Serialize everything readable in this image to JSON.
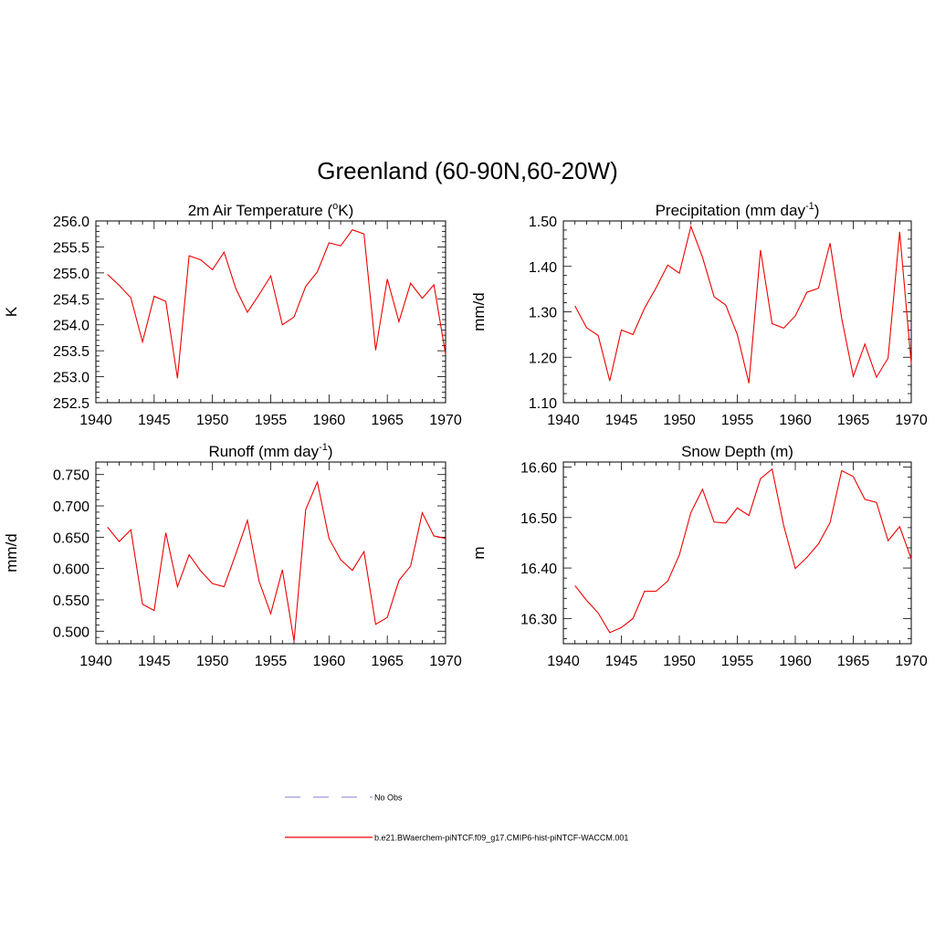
{
  "figure": {
    "title": "Greenland (60-90N,60-20W)"
  },
  "legend": {
    "entries": [
      {
        "label": "No Obs",
        "color": "#9999dd",
        "style": "dashed"
      },
      {
        "label": "b.e21.BWaerchem-piNTCF.f09_g17.CMIP6-hist-piNTCF-WACCM.001",
        "color": "#ee0000",
        "style": "solid"
      }
    ]
  },
  "chart_data": [
    {
      "type": "line",
      "title": "2m Air Temperature (",
      "title_sup": "o",
      "title_after": "K)",
      "ylabel": "K",
      "xlim": [
        1940,
        1970
      ],
      "ylim": [
        252.5,
        256.0
      ],
      "xticks": [
        1940,
        1945,
        1950,
        1955,
        1960,
        1965,
        1970
      ],
      "xtick_labels": [
        "1940",
        "1945",
        "1950",
        "1955",
        "1960",
        "1965",
        "1970"
      ],
      "yticks": [
        252.5,
        253.0,
        253.5,
        254.0,
        254.5,
        255.0,
        255.5,
        256.0
      ],
      "ytick_labels": [
        "252.5",
        "253.0",
        "253.5",
        "254.0",
        "254.5",
        "255.0",
        "255.5",
        "256.0"
      ],
      "x": [
        1941,
        1942,
        1943,
        1944,
        1945,
        1946,
        1947,
        1948,
        1949,
        1950,
        1951,
        1952,
        1953,
        1954,
        1955,
        1956,
        1957,
        1958,
        1959,
        1960,
        1961,
        1962,
        1963,
        1964,
        1965,
        1966,
        1967,
        1968,
        1969,
        1970
      ],
      "series": [
        {
          "color": "#ee0000",
          "values": [
            254.97,
            254.76,
            254.52,
            253.67,
            254.55,
            254.45,
            252.97,
            255.33,
            255.25,
            255.06,
            255.4,
            254.7,
            254.24,
            254.58,
            254.94,
            254.0,
            254.15,
            254.74,
            255.02,
            255.58,
            255.52,
            255.83,
            255.75,
            253.51,
            254.88,
            254.06,
            254.8,
            254.51,
            254.77,
            253.43
          ]
        }
      ]
    },
    {
      "type": "line",
      "title": "Precipitation (mm day",
      "title_sup": "-1",
      "title_after": ")",
      "ylabel": "mm/d",
      "xlim": [
        1940,
        1970
      ],
      "ylim": [
        1.1,
        1.5
      ],
      "xticks": [
        1940,
        1945,
        1950,
        1955,
        1960,
        1965,
        1970
      ],
      "xtick_labels": [
        "1940",
        "1945",
        "1950",
        "1955",
        "1960",
        "1965",
        "1970"
      ],
      "yticks": [
        1.1,
        1.2,
        1.3,
        1.4,
        1.5
      ],
      "ytick_labels": [
        "1.10",
        "1.20",
        "1.30",
        "1.40",
        "1.50"
      ],
      "x": [
        1941,
        1942,
        1943,
        1944,
        1945,
        1946,
        1947,
        1948,
        1949,
        1950,
        1951,
        1952,
        1953,
        1954,
        1955,
        1956,
        1957,
        1958,
        1959,
        1960,
        1961,
        1962,
        1963,
        1964,
        1965,
        1966,
        1967,
        1968,
        1969,
        1970
      ],
      "series": [
        {
          "color": "#ee0000",
          "values": [
            1.313,
            1.265,
            1.248,
            1.148,
            1.26,
            1.25,
            1.308,
            1.353,
            1.403,
            1.385,
            1.488,
            1.42,
            1.333,
            1.315,
            1.25,
            1.143,
            1.436,
            1.274,
            1.264,
            1.291,
            1.343,
            1.352,
            1.451,
            1.286,
            1.158,
            1.229,
            1.156,
            1.198,
            1.476,
            1.186
          ]
        }
      ]
    },
    {
      "type": "line",
      "title": "Runoff (mm day",
      "title_sup": "-1",
      "title_after": ")",
      "ylabel": "mm/d",
      "xlim": [
        1940,
        1970
      ],
      "ylim": [
        0.48,
        0.77
      ],
      "xticks": [
        1940,
        1945,
        1950,
        1955,
        1960,
        1965,
        1970
      ],
      "xtick_labels": [
        "1940",
        "1945",
        "1950",
        "1955",
        "1960",
        "1965",
        "1970"
      ],
      "yticks": [
        0.5,
        0.55,
        0.6,
        0.65,
        0.7,
        0.75
      ],
      "ytick_labels": [
        "0.500",
        "0.550",
        "0.600",
        "0.650",
        "0.700",
        "0.750"
      ],
      "x": [
        1941,
        1942,
        1943,
        1944,
        1945,
        1946,
        1947,
        1948,
        1949,
        1950,
        1951,
        1952,
        1953,
        1954,
        1955,
        1956,
        1957,
        1958,
        1959,
        1960,
        1961,
        1962,
        1963,
        1964,
        1965,
        1966,
        1967,
        1968,
        1969,
        1970
      ],
      "series": [
        {
          "color": "#ee0000",
          "values": [
            0.666,
            0.643,
            0.662,
            0.543,
            0.533,
            0.657,
            0.571,
            0.622,
            0.596,
            0.576,
            0.571,
            0.623,
            0.677,
            0.58,
            0.528,
            0.598,
            0.484,
            0.694,
            0.738,
            0.648,
            0.614,
            0.597,
            0.627,
            0.511,
            0.522,
            0.581,
            0.604,
            0.689,
            0.652,
            0.648
          ]
        }
      ]
    },
    {
      "type": "line",
      "title": "Snow Depth (m)",
      "title_sup": "",
      "title_after": "",
      "ylabel": "m",
      "xlim": [
        1940,
        1970
      ],
      "ylim": [
        16.25,
        16.61
      ],
      "xticks": [
        1940,
        1945,
        1950,
        1955,
        1960,
        1965,
        1970
      ],
      "xtick_labels": [
        "1940",
        "1945",
        "1950",
        "1955",
        "1960",
        "1965",
        "1970"
      ],
      "yticks": [
        16.3,
        16.4,
        16.5,
        16.6
      ],
      "ytick_labels": [
        "16.30",
        "16.40",
        "16.50",
        "16.60"
      ],
      "x": [
        1941,
        1942,
        1943,
        1944,
        1945,
        1946,
        1947,
        1948,
        1949,
        1950,
        1951,
        1952,
        1953,
        1954,
        1955,
        1956,
        1957,
        1958,
        1959,
        1960,
        1961,
        1962,
        1963,
        1964,
        1965,
        1966,
        1967,
        1968,
        1969,
        1970
      ],
      "series": [
        {
          "color": "#ee0000",
          "values": [
            16.365,
            16.336,
            16.311,
            16.272,
            16.282,
            16.3,
            16.354,
            16.354,
            16.374,
            16.426,
            16.51,
            16.556,
            16.491,
            16.489,
            16.519,
            16.504,
            16.577,
            16.596,
            16.484,
            16.399,
            16.421,
            16.448,
            16.49,
            16.593,
            16.581,
            16.536,
            16.53,
            16.454,
            16.482,
            16.418
          ]
        }
      ]
    }
  ]
}
